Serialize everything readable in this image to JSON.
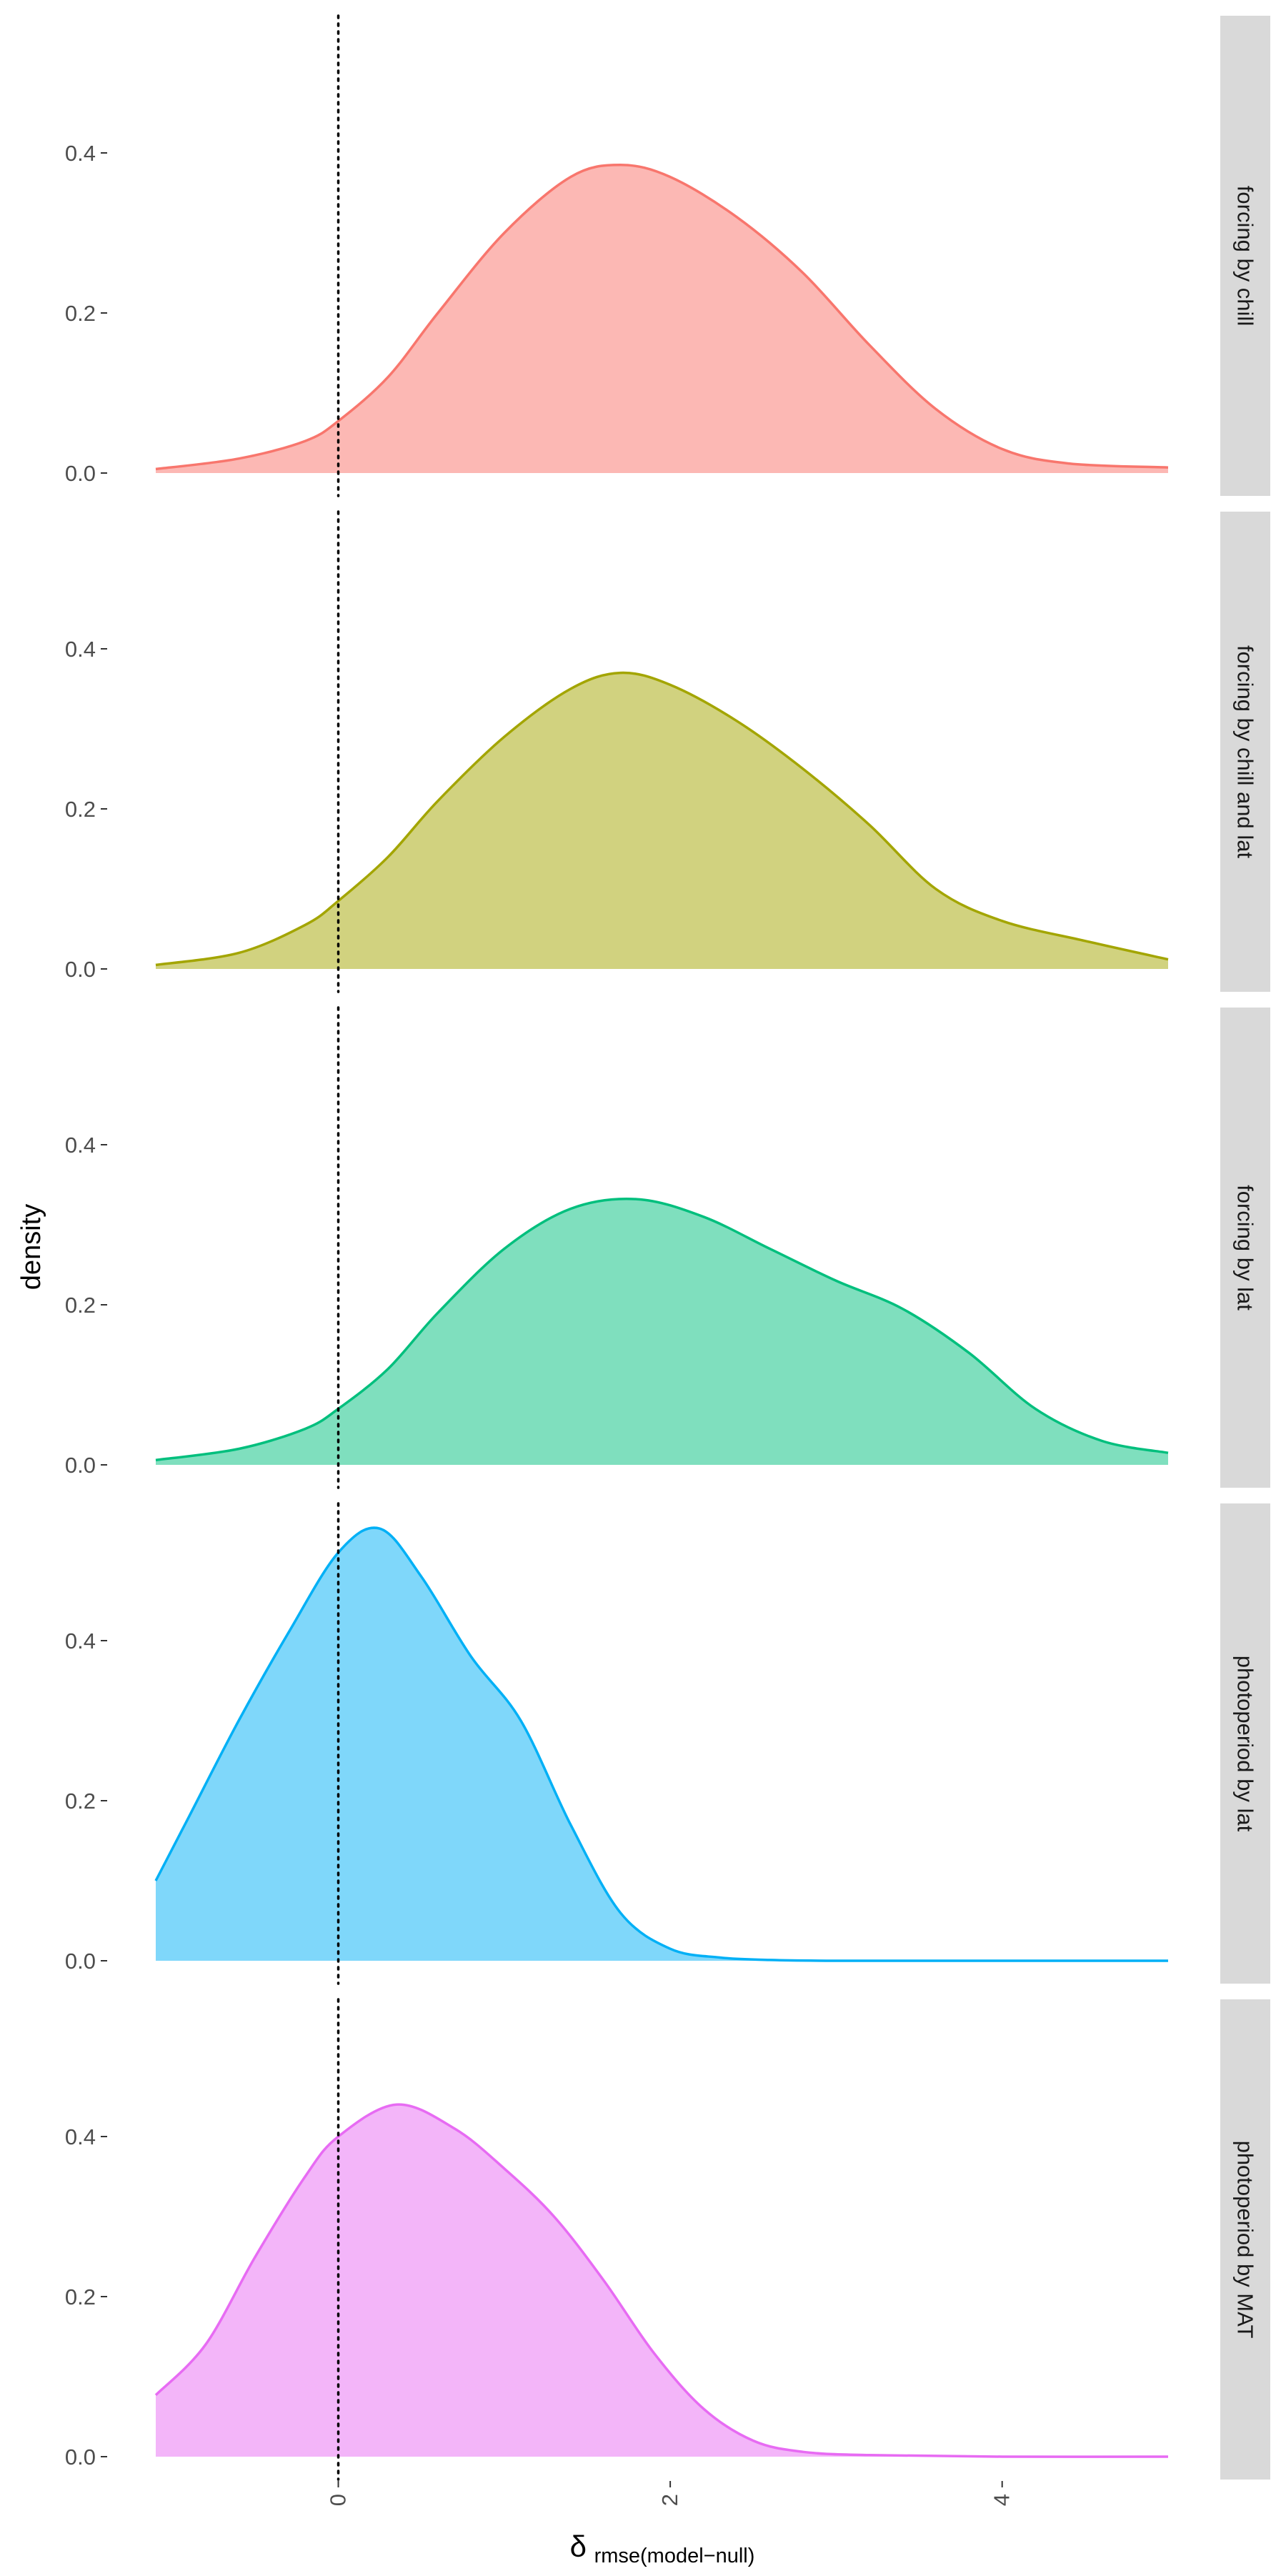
{
  "chart_data": {
    "type": "area",
    "subtype": "density-facets",
    "xlabel": "δ",
    "xlabel_subscript": "rmse(model−null)",
    "ylabel": "density",
    "xlim": [
      -1.1,
      5.0
    ],
    "ylim": [
      0,
      0.55
    ],
    "x_ticks": [
      0,
      2,
      4
    ],
    "x_tick_labels": [
      "0",
      "2",
      "4"
    ],
    "y_ticks": [
      0.0,
      0.2,
      0.4
    ],
    "y_tick_labels": [
      "0.0",
      "0.2",
      "0.4"
    ],
    "reference_line": {
      "x": 0,
      "style": "dotted",
      "color": "#000000"
    },
    "grid": false,
    "legend": "none",
    "facets": [
      {
        "label": "forcing by chill",
        "color": "#F8766D",
        "fill": "#FCB8B4",
        "x": [
          -1.1,
          -0.6,
          -0.2,
          0.0,
          0.3,
          0.6,
          1.0,
          1.4,
          1.7,
          2.0,
          2.4,
          2.8,
          3.2,
          3.6,
          4.0,
          4.4,
          5.0
        ],
        "y": [
          0.005,
          0.018,
          0.04,
          0.065,
          0.12,
          0.2,
          0.3,
          0.37,
          0.385,
          0.37,
          0.32,
          0.25,
          0.16,
          0.08,
          0.03,
          0.012,
          0.007
        ]
      },
      {
        "label": "forcing by chill and lat",
        "color": "#A3A500",
        "fill": "#D1D27F",
        "x": [
          -1.1,
          -0.6,
          -0.2,
          0.0,
          0.3,
          0.6,
          1.0,
          1.4,
          1.7,
          2.0,
          2.4,
          2.8,
          3.2,
          3.6,
          4.0,
          4.5,
          5.0
        ],
        "y": [
          0.005,
          0.02,
          0.055,
          0.085,
          0.14,
          0.21,
          0.29,
          0.35,
          0.37,
          0.355,
          0.31,
          0.25,
          0.18,
          0.1,
          0.06,
          0.035,
          0.012
        ]
      },
      {
        "label": "forcing by lat",
        "color": "#00BF7D",
        "fill": "#7FDFBE",
        "x": [
          -1.1,
          -0.6,
          -0.2,
          0.0,
          0.3,
          0.6,
          1.0,
          1.4,
          1.8,
          2.2,
          2.6,
          3.0,
          3.4,
          3.8,
          4.2,
          4.6,
          5.0
        ],
        "y": [
          0.006,
          0.02,
          0.045,
          0.07,
          0.12,
          0.19,
          0.27,
          0.32,
          0.332,
          0.31,
          0.27,
          0.23,
          0.195,
          0.14,
          0.07,
          0.03,
          0.015
        ]
      },
      {
        "label": "photoperiod by lat",
        "color": "#00B0F6",
        "fill": "#7FD7FA",
        "x": [
          -1.1,
          -0.9,
          -0.6,
          -0.3,
          0.0,
          0.25,
          0.5,
          0.8,
          1.1,
          1.4,
          1.7,
          2.0,
          2.3,
          2.6,
          3.0,
          4.0,
          5.0
        ],
        "y": [
          0.1,
          0.18,
          0.3,
          0.41,
          0.51,
          0.54,
          0.48,
          0.38,
          0.3,
          0.17,
          0.06,
          0.015,
          0.004,
          0.001,
          0.0,
          0.0,
          0.0
        ]
      },
      {
        "label": "photoperiod by MAT",
        "color": "#E76BF3",
        "fill": "#F3B5F9",
        "x": [
          -1.1,
          -0.8,
          -0.5,
          -0.2,
          0.0,
          0.35,
          0.7,
          1.0,
          1.3,
          1.6,
          1.9,
          2.2,
          2.5,
          2.8,
          3.2,
          4.0,
          5.0
        ],
        "y": [
          0.077,
          0.14,
          0.25,
          0.35,
          0.4,
          0.44,
          0.41,
          0.36,
          0.3,
          0.22,
          0.13,
          0.06,
          0.02,
          0.006,
          0.002,
          0.0,
          0.0
        ]
      }
    ]
  }
}
